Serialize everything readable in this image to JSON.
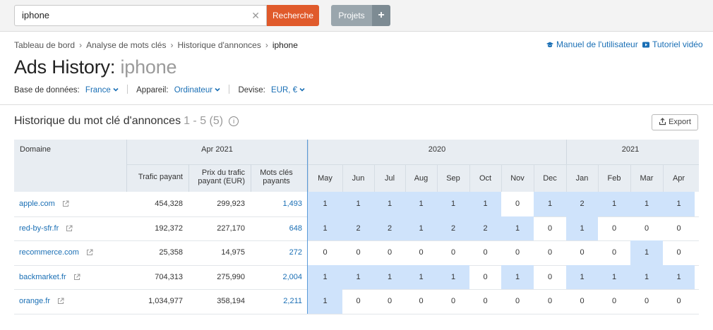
{
  "search": {
    "value": "iphone",
    "button": "Recherche"
  },
  "projects": {
    "label": "Projets",
    "plus": "+"
  },
  "breadcrumb": [
    "Tableau de bord",
    "Analyse de mots clés",
    "Historique d'annonces",
    "iphone"
  ],
  "help_links": {
    "manual": "Manuel de l'utilisateur",
    "video": "Tutoriel vidéo"
  },
  "title": {
    "main": "Ads History:",
    "keyword": "iphone"
  },
  "filters": {
    "db_label": "Base de données:",
    "db_value": "France",
    "device_label": "Appareil:",
    "device_value": "Ordinateur",
    "currency_label": "Devise:",
    "currency_value": "EUR, €"
  },
  "section": {
    "title": "Historique du mot clé d'annonces",
    "count": "1 - 5 (5)",
    "export": "Export"
  },
  "table": {
    "domain_header": "Domaine",
    "period_header": "Apr 2021",
    "metric_headers": [
      "Trafic payant",
      "Prix du trafic\npayant (EUR)",
      "Mots clés\npayants"
    ],
    "year_groups": [
      {
        "year": "2020",
        "months": [
          "May",
          "Jun",
          "Jul",
          "Aug",
          "Sep",
          "Oct",
          "Nov",
          "Dec"
        ]
      },
      {
        "year": "2021",
        "months": [
          "Jan",
          "Feb",
          "Mar",
          "Apr"
        ]
      }
    ],
    "rows": [
      {
        "domain": "apple.com",
        "traffic": "454,328",
        "price": "299,923",
        "keywords": "1,493",
        "months": [
          "1",
          "1",
          "1",
          "1",
          "1",
          "1",
          "0",
          "1",
          "2",
          "1",
          "1",
          "1"
        ]
      },
      {
        "domain": "red-by-sfr.fr",
        "traffic": "192,372",
        "price": "227,170",
        "keywords": "648",
        "months": [
          "1",
          "2",
          "2",
          "1",
          "2",
          "2",
          "1",
          "0",
          "1",
          "0",
          "0",
          "0"
        ]
      },
      {
        "domain": "recommerce.com",
        "traffic": "25,358",
        "price": "14,975",
        "keywords": "272",
        "months": [
          "0",
          "0",
          "0",
          "0",
          "0",
          "0",
          "0",
          "0",
          "0",
          "0",
          "1",
          "0"
        ]
      },
      {
        "domain": "backmarket.fr",
        "traffic": "704,313",
        "price": "275,990",
        "keywords": "2,004",
        "months": [
          "1",
          "1",
          "1",
          "1",
          "1",
          "0",
          "1",
          "0",
          "1",
          "1",
          "1",
          "1"
        ]
      },
      {
        "domain": "orange.fr",
        "traffic": "1,034,977",
        "price": "358,194",
        "keywords": "2,211",
        "months": [
          "1",
          "0",
          "0",
          "0",
          "0",
          "0",
          "0",
          "0",
          "0",
          "0",
          "0",
          "0"
        ]
      }
    ]
  },
  "colors": {
    "accent": "#1a6fb5",
    "search_button": "#e05a2b",
    "highlight": "#cfe3fb",
    "header_bg": "#e8edf2"
  }
}
